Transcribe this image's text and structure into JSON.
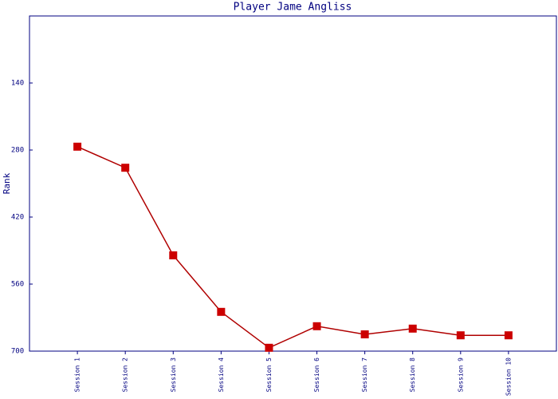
{
  "chart_data": {
    "type": "line",
    "title": "Player Jame Angliss",
    "y_label": "Rank",
    "categories": [
      "Session 1",
      "Session 2",
      "Session 3",
      "Session 4",
      "Session 5",
      "Session 6",
      "Session 7",
      "Session 8",
      "Session 9",
      "Session 10"
    ],
    "values": [
      273,
      317,
      500,
      618,
      693,
      648,
      665,
      653,
      667,
      667
    ],
    "color": "#cc0000",
    "line_color": "#b00000",
    "axis_color": "#000080",
    "ylim": [
      0,
      700
    ],
    "y_inverted": true,
    "yticks": [
      140,
      280,
      420,
      560,
      700
    ],
    "grid": false
  }
}
